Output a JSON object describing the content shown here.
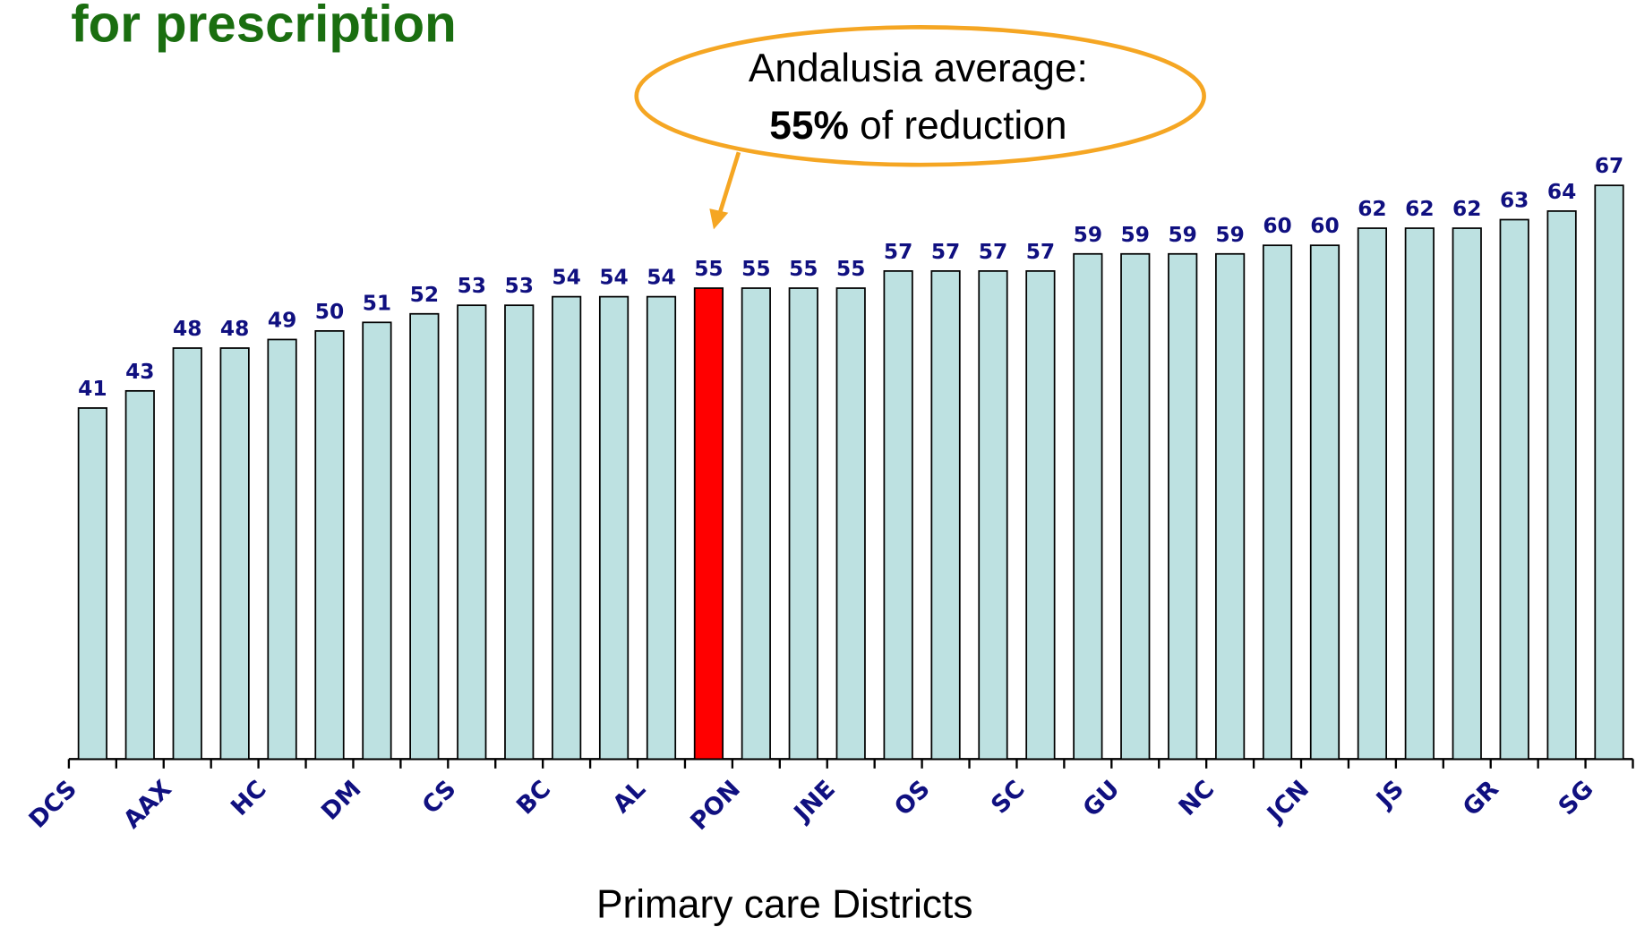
{
  "chart_data": {
    "type": "bar",
    "title": "for prescription",
    "callout": {
      "line1": "Andalusia average:",
      "bold": "55%",
      "rest": " of reduction"
    },
    "x_label": "Primary care Districts",
    "categories": [
      "DCS",
      null,
      "AAX",
      null,
      "HC",
      null,
      "DM",
      null,
      "CS",
      null,
      "BC",
      null,
      "AL",
      null,
      "PON",
      null,
      "JNE",
      null,
      "OS",
      null,
      "SC",
      null,
      "GU",
      null,
      "NC",
      null,
      "JCN",
      null,
      "JS",
      null,
      "GR",
      null,
      "SG"
    ],
    "values": [
      41,
      43,
      48,
      48,
      49,
      50,
      51,
      52,
      53,
      53,
      54,
      54,
      54,
      55,
      55,
      55,
      55,
      57,
      57,
      57,
      57,
      59,
      59,
      59,
      59,
      60,
      60,
      62,
      62,
      62,
      63,
      64,
      67
    ],
    "colors": [
      "#bde1e1",
      "#bde1e1",
      "#bde1e1",
      "#bde1e1",
      "#bde1e1",
      "#bde1e1",
      "#bde1e1",
      "#bde1e1",
      "#bde1e1",
      "#bde1e1",
      "#bde1e1",
      "#bde1e1",
      "#bde1e1",
      "#ff0000",
      "#bde1e1",
      "#bde1e1",
      "#bde1e1",
      "#bde1e1",
      "#bde1e1",
      "#bde1e1",
      "#bde1e1",
      "#bde1e1",
      "#bde1e1",
      "#bde1e1",
      "#bde1e1",
      "#bde1e1",
      "#bde1e1",
      "#bde1e1",
      "#bde1e1",
      "#bde1e1",
      "#bde1e1",
      "#bde1e1",
      "#bde1e1"
    ],
    "ylim": [
      0,
      80
    ]
  }
}
